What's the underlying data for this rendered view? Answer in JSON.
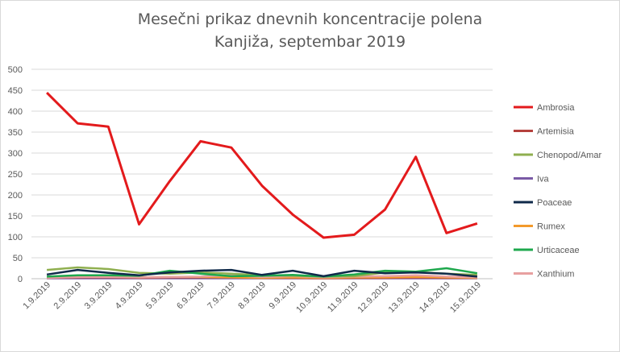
{
  "chart_data": {
    "type": "line",
    "title": "Mesečni prikaz dnevnih koncentracije polena",
    "subtitle": "Kanjiža, septembar 2019",
    "xlabel": "",
    "ylabel": "",
    "ylim": [
      0,
      500
    ],
    "yticks": [
      0,
      50,
      100,
      150,
      200,
      250,
      300,
      350,
      400,
      450,
      500
    ],
    "grid": true,
    "legend_position": "right",
    "categories": [
      "1.9.2019",
      "2.9.2019",
      "3.9.2019",
      "4.9.2019",
      "5.9.2019",
      "6.9.2019",
      "7.9.2019",
      "8.9.2019",
      "9.9.2019",
      "10.9.2019",
      "11.9.2019",
      "12.9.2019",
      "13.9.2019",
      "14.9.2019",
      "15.9.2019"
    ],
    "series": [
      {
        "name": "Ambrosia",
        "color": "#e31a1c",
        "values": [
          444,
          371,
          363,
          130,
          233,
          328,
          313,
          222,
          153,
          98,
          105,
          165,
          291,
          109,
          132
        ]
      },
      {
        "name": "Artemisia",
        "color": "#b5413d",
        "values": [
          2,
          3,
          3,
          2,
          3,
          3,
          3,
          2,
          2,
          1,
          2,
          2,
          3,
          2,
          2
        ]
      },
      {
        "name": "Chenopod/Amar",
        "color": "#8faf4f",
        "values": [
          21,
          27,
          23,
          14,
          12,
          15,
          12,
          8,
          7,
          5,
          6,
          15,
          16,
          12,
          9
        ]
      },
      {
        "name": "Iva",
        "color": "#7a5aa6",
        "values": [
          1,
          1,
          1,
          1,
          1,
          1,
          1,
          1,
          1,
          1,
          1,
          1,
          1,
          1,
          1
        ]
      },
      {
        "name": "Poaceae",
        "color": "#0f2a4a",
        "values": [
          10,
          21,
          14,
          8,
          15,
          19,
          21,
          9,
          19,
          6,
          19,
          13,
          15,
          12,
          5
        ]
      },
      {
        "name": "Rumex",
        "color": "#f39a2b",
        "values": [
          3,
          4,
          5,
          3,
          4,
          4,
          3,
          2,
          3,
          2,
          3,
          3,
          4,
          3,
          2
        ]
      },
      {
        "name": "Urticaceae",
        "color": "#1ea84d",
        "values": [
          5,
          8,
          8,
          7,
          19,
          12,
          6,
          7,
          9,
          5,
          10,
          19,
          17,
          25,
          13
        ]
      },
      {
        "name": "Xanthium",
        "color": "#e8a0a0",
        "values": [
          2,
          4,
          4,
          3,
          4,
          5,
          8,
          4,
          6,
          3,
          5,
          6,
          8,
          5,
          3
        ]
      }
    ]
  }
}
